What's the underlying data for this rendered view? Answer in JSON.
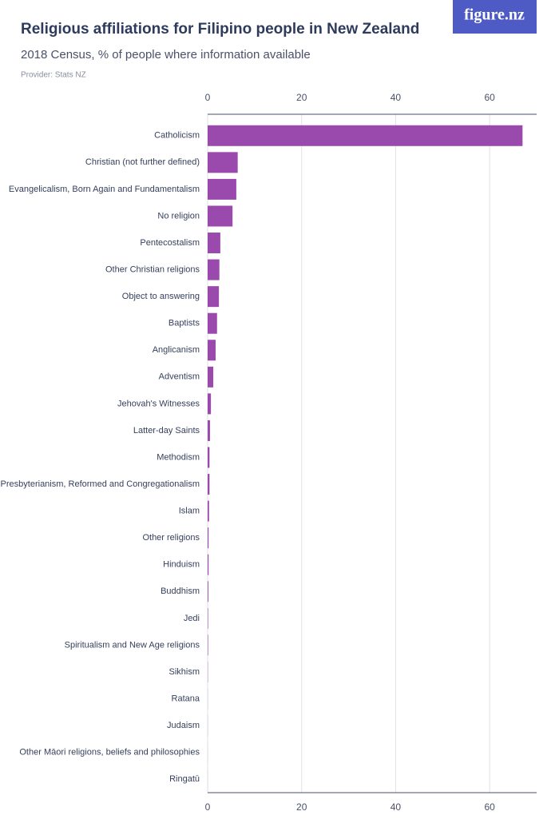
{
  "logo": "figure.nz",
  "chart_data": {
    "type": "bar",
    "orientation": "horizontal",
    "title": "Religious affiliations for Filipino people in New Zealand",
    "subtitle": "2018 Census, % of people where information available",
    "provider": "Provider: Stats NZ",
    "categories": [
      "Catholicism",
      "Christian (not further defined)",
      "Evangelicalism, Born Again and Fundamentalism",
      "No religion",
      "Pentecostalism",
      "Other Christian religions",
      "Object to answering",
      "Baptists",
      "Anglicanism",
      "Adventism",
      "Jehovah's Witnesses",
      "Latter-day Saints",
      "Methodism",
      "Presbyterianism, Reformed and Congregationalism",
      "Islam",
      "Other religions",
      "Hinduism",
      "Buddhism",
      "Jedi",
      "Spiritualism and New Age religions",
      "Sikhism",
      "Ratana",
      "Judaism",
      "Other Māori religions, beliefs and philosophies",
      "Ringatū"
    ],
    "values": [
      67,
      6.4,
      6.1,
      5.3,
      2.7,
      2.5,
      2.4,
      2.0,
      1.7,
      1.2,
      0.7,
      0.5,
      0.4,
      0.4,
      0.3,
      0.2,
      0.2,
      0.15,
      0.1,
      0.1,
      0.05,
      0.02,
      0.02,
      0.01,
      0.01
    ],
    "color": "#9a4aad",
    "xlim": [
      0,
      70
    ],
    "xticks": [
      0,
      20,
      40,
      60
    ],
    "grid": true
  }
}
